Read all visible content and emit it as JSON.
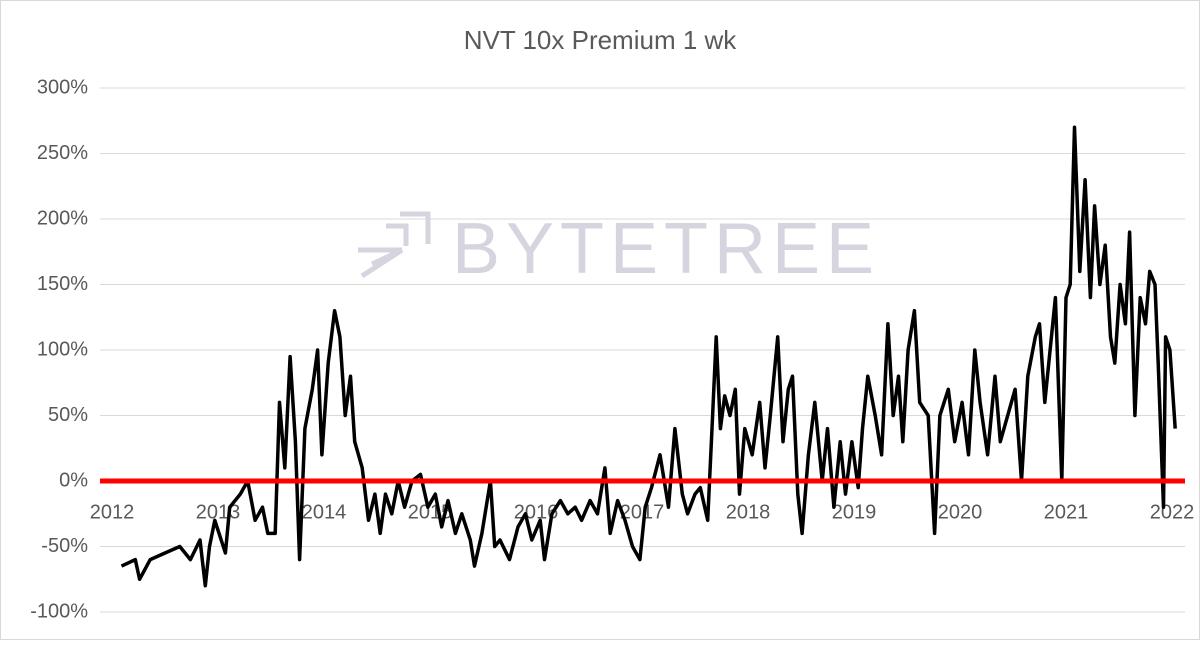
{
  "chart_data": {
    "type": "line",
    "title": "NVT 10x Premium 1 wk",
    "watermark": "BYTETREE",
    "color": "#000000",
    "grid": true,
    "zero_line": {
      "value": 0,
      "color": "#ff0000"
    },
    "xlim": [
      2011.9,
      2022.1
    ],
    "xticks": [
      2012,
      2013,
      2014,
      2015,
      2016,
      2017,
      2018,
      2019,
      2020,
      2021,
      2022
    ],
    "ylim": [
      -100,
      300
    ],
    "yticks": [
      {
        "value": -100,
        "label": "-100%"
      },
      {
        "value": -50,
        "label": "-50%"
      },
      {
        "value": 0,
        "label": "0%"
      },
      {
        "value": 50,
        "label": "50%"
      },
      {
        "value": 100,
        "label": "100%"
      },
      {
        "value": 150,
        "label": "150%"
      },
      {
        "value": 200,
        "label": "200%"
      },
      {
        "value": 250,
        "label": "250%"
      },
      {
        "value": 300,
        "label": "300%"
      }
    ],
    "x": [
      2012.09,
      2012.22,
      2012.26,
      2012.36,
      2012.5,
      2012.64,
      2012.74,
      2012.83,
      2012.88,
      2012.92,
      2012.97,
      2013.07,
      2013.11,
      2013.21,
      2013.28,
      2013.35,
      2013.42,
      2013.47,
      2013.54,
      2013.58,
      2013.63,
      2013.68,
      2013.73,
      2013.77,
      2013.82,
      2013.89,
      2013.94,
      2013.98,
      2014.04,
      2014.1,
      2014.15,
      2014.2,
      2014.25,
      2014.29,
      2014.36,
      2014.42,
      2014.48,
      2014.53,
      2014.58,
      2014.64,
      2014.7,
      2014.76,
      2014.83,
      2014.91,
      2014.98,
      2015.05,
      2015.11,
      2015.17,
      2015.24,
      2015.3,
      2015.38,
      2015.42,
      2015.49,
      2015.57,
      2015.61,
      2015.66,
      2015.75,
      2015.83,
      2015.9,
      2015.96,
      2016.04,
      2016.08,
      2016.15,
      2016.23,
      2016.3,
      2016.37,
      2016.43,
      2016.51,
      2016.58,
      2016.65,
      2016.7,
      2016.77,
      2016.84,
      2016.91,
      2016.98,
      2017.03,
      2017.09,
      2017.17,
      2017.25,
      2017.31,
      2017.38,
      2017.43,
      2017.5,
      2017.55,
      2017.62,
      2017.66,
      2017.7,
      2017.74,
      2017.78,
      2017.83,
      2017.88,
      2017.92,
      2017.97,
      2018.04,
      2018.11,
      2018.16,
      2018.21,
      2018.28,
      2018.33,
      2018.38,
      2018.42,
      2018.47,
      2018.51,
      2018.57,
      2018.63,
      2018.7,
      2018.75,
      2018.81,
      2018.87,
      2018.92,
      2018.98,
      2019.04,
      2019.08,
      2019.13,
      2019.2,
      2019.26,
      2019.32,
      2019.37,
      2019.42,
      2019.46,
      2019.51,
      2019.57,
      2019.62,
      2019.7,
      2019.76,
      2019.81,
      2019.89,
      2019.95,
      2020.02,
      2020.08,
      2020.14,
      2020.19,
      2020.26,
      2020.33,
      2020.38,
      2020.45,
      2020.52,
      2020.58,
      2020.64,
      2020.71,
      2020.75,
      2020.8,
      2020.85,
      2020.9,
      2020.96,
      2021.0,
      2021.04,
      2021.08,
      2021.13,
      2021.18,
      2021.23,
      2021.27,
      2021.32,
      2021.37,
      2021.42,
      2021.46,
      2021.51,
      2021.56,
      2021.6,
      2021.65,
      2021.7,
      2021.75,
      2021.79,
      2021.84,
      2021.87,
      2021.92,
      2021.94,
      2021.98,
      2022.03
    ],
    "values": [
      -65,
      -60,
      -75,
      -60,
      -55,
      -50,
      -60,
      -45,
      -80,
      -50,
      -30,
      -55,
      -20,
      -10,
      0,
      -30,
      -20,
      -40,
      -40,
      60,
      10,
      95,
      30,
      -60,
      40,
      70,
      100,
      20,
      90,
      130,
      110,
      50,
      80,
      30,
      10,
      -30,
      -10,
      -40,
      -10,
      -25,
      0,
      -20,
      0,
      5,
      -20,
      -10,
      -35,
      -15,
      -40,
      -25,
      -45,
      -65,
      -40,
      0,
      -50,
      -45,
      -60,
      -35,
      -25,
      -45,
      -30,
      -60,
      -25,
      -15,
      -25,
      -20,
      -30,
      -15,
      -25,
      10,
      -40,
      -15,
      -30,
      -50,
      -60,
      -20,
      -5,
      20,
      -20,
      40,
      -10,
      -25,
      -10,
      -5,
      -30,
      40,
      110,
      40,
      65,
      50,
      70,
      -10,
      40,
      20,
      60,
      10,
      50,
      110,
      30,
      70,
      80,
      -10,
      -40,
      20,
      60,
      0,
      40,
      -20,
      30,
      -10,
      30,
      -5,
      40,
      80,
      50,
      20,
      120,
      50,
      80,
      30,
      100,
      130,
      60,
      50,
      -40,
      50,
      70,
      30,
      60,
      20,
      100,
      60,
      20,
      80,
      30,
      50,
      70,
      0,
      80,
      110,
      120,
      60,
      100,
      140,
      0,
      140,
      150,
      270,
      160,
      230,
      140,
      210,
      150,
      180,
      110,
      90,
      150,
      120,
      190,
      50,
      140,
      120,
      160,
      150,
      90,
      -20,
      110,
      100,
      40
    ]
  }
}
